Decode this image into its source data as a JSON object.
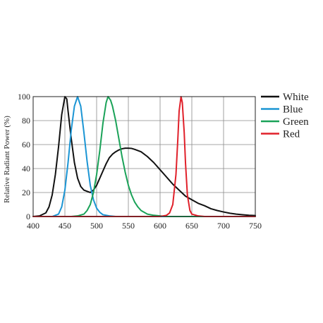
{
  "chart_data": {
    "type": "line",
    "title": "",
    "xlabel": "",
    "ylabel": "Relative Radiant Power (%)",
    "xlim": [
      400,
      750
    ],
    "ylim": [
      0,
      100
    ],
    "xticks": [
      400,
      450,
      500,
      550,
      600,
      650,
      700,
      750
    ],
    "yticks": [
      0,
      20,
      40,
      60,
      80,
      100
    ],
    "grid": true,
    "legend_position": "right",
    "series": [
      {
        "name": "White",
        "color": "#111111",
        "points": [
          [
            400,
            0
          ],
          [
            410,
            0.5
          ],
          [
            420,
            3
          ],
          [
            425,
            8
          ],
          [
            430,
            18
          ],
          [
            435,
            35
          ],
          [
            440,
            58
          ],
          [
            445,
            85
          ],
          [
            450,
            100
          ],
          [
            453,
            98
          ],
          [
            455,
            88
          ],
          [
            460,
            65
          ],
          [
            465,
            45
          ],
          [
            470,
            32
          ],
          [
            475,
            25
          ],
          [
            480,
            22
          ],
          [
            485,
            21
          ],
          [
            490,
            20
          ],
          [
            495,
            22
          ],
          [
            500,
            26
          ],
          [
            505,
            32
          ],
          [
            510,
            38
          ],
          [
            515,
            44
          ],
          [
            520,
            49
          ],
          [
            525,
            52
          ],
          [
            530,
            54
          ],
          [
            535,
            55.5
          ],
          [
            540,
            56.5
          ],
          [
            545,
            57
          ],
          [
            550,
            57
          ],
          [
            555,
            56.8
          ],
          [
            560,
            56
          ],
          [
            570,
            54
          ],
          [
            580,
            50
          ],
          [
            590,
            45
          ],
          [
            600,
            39
          ],
          [
            610,
            33
          ],
          [
            620,
            27
          ],
          [
            630,
            22
          ],
          [
            640,
            17
          ],
          [
            650,
            14
          ],
          [
            660,
            11
          ],
          [
            670,
            9
          ],
          [
            680,
            6.5
          ],
          [
            690,
            5
          ],
          [
            700,
            3.8
          ],
          [
            710,
            2.7
          ],
          [
            720,
            2
          ],
          [
            730,
            1.5
          ],
          [
            740,
            1
          ],
          [
            750,
            0.8
          ]
        ]
      },
      {
        "name": "Blue",
        "color": "#1b95d4",
        "points": [
          [
            400,
            0
          ],
          [
            430,
            0
          ],
          [
            440,
            2
          ],
          [
            445,
            8
          ],
          [
            450,
            22
          ],
          [
            455,
            45
          ],
          [
            460,
            72
          ],
          [
            465,
            92
          ],
          [
            470,
            100
          ],
          [
            475,
            92
          ],
          [
            480,
            70
          ],
          [
            485,
            46
          ],
          [
            490,
            26
          ],
          [
            495,
            14
          ],
          [
            500,
            7
          ],
          [
            505,
            3.5
          ],
          [
            510,
            1.5
          ],
          [
            520,
            0.5
          ],
          [
            530,
            0
          ],
          [
            750,
            0
          ]
        ]
      },
      {
        "name": "Green",
        "color": "#1aa258",
        "points": [
          [
            400,
            0
          ],
          [
            460,
            0
          ],
          [
            470,
            0.5
          ],
          [
            480,
            2
          ],
          [
            485,
            5
          ],
          [
            490,
            10
          ],
          [
            495,
            20
          ],
          [
            500,
            35
          ],
          [
            505,
            55
          ],
          [
            510,
            78
          ],
          [
            515,
            95
          ],
          [
            518,
            100
          ],
          [
            522,
            97
          ],
          [
            525,
            92
          ],
          [
            530,
            80
          ],
          [
            535,
            65
          ],
          [
            540,
            50
          ],
          [
            545,
            37
          ],
          [
            550,
            26
          ],
          [
            555,
            18
          ],
          [
            560,
            12
          ],
          [
            565,
            8
          ],
          [
            570,
            5
          ],
          [
            580,
            2
          ],
          [
            590,
            1
          ],
          [
            600,
            0.5
          ],
          [
            610,
            0
          ],
          [
            750,
            0
          ]
        ]
      },
      {
        "name": "Red",
        "color": "#e0202a",
        "points": [
          [
            400,
            0
          ],
          [
            600,
            0
          ],
          [
            610,
            1
          ],
          [
            615,
            3
          ],
          [
            620,
            10
          ],
          [
            625,
            35
          ],
          [
            628,
            65
          ],
          [
            630,
            88
          ],
          [
            633,
            100
          ],
          [
            635,
            95
          ],
          [
            638,
            70
          ],
          [
            640,
            45
          ],
          [
            643,
            18
          ],
          [
            647,
            5
          ],
          [
            650,
            2
          ],
          [
            660,
            0.5
          ],
          [
            670,
            0
          ],
          [
            750,
            0
          ]
        ]
      }
    ]
  }
}
